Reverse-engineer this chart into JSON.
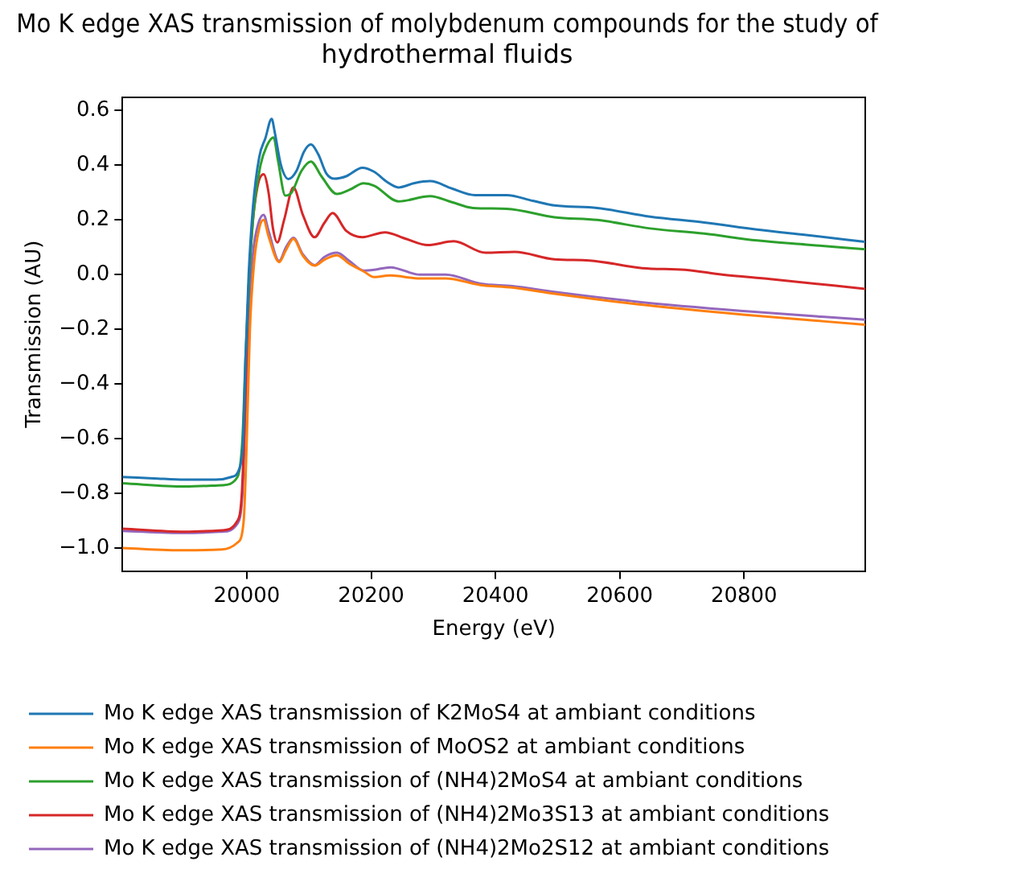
{
  "chart_data": {
    "type": "line",
    "title": "Mo K edge XAS transmission of molybdenum compounds for the study of hydrothermal fluids",
    "xlabel": "Energy (eV)",
    "ylabel": "Transmission (AU)",
    "xlim": [
      19800,
      20995
    ],
    "xticks": [
      20000,
      20200,
      20400,
      20600,
      20800
    ],
    "ylim": [
      -1.084,
      0.649
    ],
    "yticks": [
      {
        "value": -1.0,
        "label": "−1.0"
      },
      {
        "value": -0.8,
        "label": "−0.8"
      },
      {
        "value": -0.6,
        "label": "−0.6"
      },
      {
        "value": -0.4,
        "label": "−0.4"
      },
      {
        "value": -0.2,
        "label": "−0.2"
      },
      {
        "value": 0,
        "label": "0.0"
      },
      {
        "value": 0.2,
        "label": "0.2"
      },
      {
        "value": 0.4,
        "label": "0.4"
      },
      {
        "value": 0.6,
        "label": "0.6"
      }
    ],
    "grid": false,
    "legend": "bottom",
    "marker": "none",
    "line_style": "solid",
    "series": [
      {
        "name": "Mo K edge XAS transmission of K2MoS4 at ambiant conditions",
        "color": "#1f77b4",
        "x": [
          19800,
          19850,
          19900,
          19950,
          19975,
          19988,
          19994,
          19998,
          20003,
          20010,
          20020,
          20030,
          20040,
          20045,
          20055,
          20067,
          20080,
          20092,
          20103,
          20115,
          20128,
          20141,
          20160,
          20186,
          20205,
          20225,
          20244,
          20270,
          20295,
          20330,
          20367,
          20418,
          20460,
          20495,
          20564,
          20649,
          20736,
          20821,
          20900,
          20995
        ],
        "values": [
          -0.74,
          -0.745,
          -0.75,
          -0.75,
          -0.74,
          -0.71,
          -0.6,
          -0.3,
          0.0,
          0.25,
          0.43,
          0.5,
          0.57,
          0.52,
          0.4,
          0.35,
          0.38,
          0.45,
          0.476,
          0.44,
          0.37,
          0.351,
          0.36,
          0.391,
          0.376,
          0.34,
          0.319,
          0.335,
          0.342,
          0.315,
          0.291,
          0.291,
          0.27,
          0.253,
          0.244,
          0.212,
          0.191,
          0.165,
          0.145,
          0.12
        ]
      },
      {
        "name": "Mo K edge XAS transmission of MoOS2 at ambiant conditions",
        "color": "#ff7f0e",
        "x": [
          19800,
          19900,
          19960,
          19985,
          19995,
          20000,
          20005,
          20012,
          20020,
          20027,
          20035,
          20052,
          20063,
          20075,
          20090,
          20109,
          20125,
          20145,
          20165,
          20188,
          20205,
          20231,
          20278,
          20320,
          20376,
          20427,
          20495,
          20628,
          20799,
          20995
        ],
        "values": [
          -1.0,
          -1.008,
          -1.005,
          -0.98,
          -0.9,
          -0.6,
          -0.2,
          0.05,
          0.17,
          0.2,
          0.14,
          0.046,
          0.09,
          0.131,
          0.07,
          0.033,
          0.055,
          0.071,
          0.04,
          0.012,
          -0.009,
          -0.003,
          -0.014,
          -0.014,
          -0.038,
          -0.047,
          -0.07,
          -0.108,
          -0.146,
          -0.183
        ]
      },
      {
        "name": "Mo K edge XAS transmission of (NH4)2MoS4 at ambiant conditions",
        "color": "#2ca02c",
        "x": [
          19800,
          19900,
          19960,
          19985,
          19993,
          19998,
          20004,
          20012,
          20022,
          20032,
          20043,
          20050,
          20062,
          20072,
          20088,
          20103,
          20120,
          20145,
          20165,
          20188,
          20205,
          20244,
          20295,
          20330,
          20364,
          20418,
          20495,
          20564,
          20649,
          20736,
          20821,
          20900,
          20995
        ],
        "values": [
          -0.763,
          -0.775,
          -0.77,
          -0.74,
          -0.6,
          -0.3,
          0.0,
          0.25,
          0.4,
          0.47,
          0.502,
          0.42,
          0.289,
          0.3,
          0.38,
          0.414,
          0.36,
          0.295,
          0.31,
          0.334,
          0.325,
          0.268,
          0.287,
          0.265,
          0.244,
          0.241,
          0.21,
          0.2,
          0.169,
          0.15,
          0.125,
          0.11,
          0.093
        ]
      },
      {
        "name": "Mo K edge XAS transmission of (NH4)2Mo3S13 at ambiant conditions",
        "color": "#d62728",
        "x": [
          19800,
          19900,
          19960,
          19985,
          19992,
          19997,
          20002,
          20008,
          20017,
          20027,
          20035,
          20042,
          20049,
          20060,
          20075,
          20090,
          20109,
          20125,
          20138,
          20160,
          20186,
          20222,
          20256,
          20291,
          20333,
          20384,
          20431,
          20495,
          20551,
          20636,
          20705,
          20765,
          20842,
          20995
        ],
        "values": [
          -0.929,
          -0.94,
          -0.935,
          -0.9,
          -0.8,
          -0.5,
          -0.1,
          0.15,
          0.32,
          0.367,
          0.3,
          0.17,
          0.118,
          0.2,
          0.319,
          0.22,
          0.137,
          0.19,
          0.225,
          0.16,
          0.137,
          0.155,
          0.131,
          0.108,
          0.122,
          0.08,
          0.083,
          0.056,
          0.052,
          0.024,
          0.018,
          0.0,
          -0.016,
          -0.052
        ]
      },
      {
        "name": "Mo K edge XAS transmission of (NH4)2Mo2S12 at ambiant conditions",
        "color": "#9467bd",
        "x": [
          19800,
          19900,
          19960,
          19985,
          19993,
          19998,
          20003,
          20010,
          20019,
          20027,
          20035,
          20052,
          20063,
          20075,
          20090,
          20109,
          20125,
          20145,
          20165,
          20188,
          20205,
          20231,
          20278,
          20320,
          20376,
          20427,
          20495,
          20628,
          20799,
          20995
        ],
        "values": [
          -0.937,
          -0.945,
          -0.94,
          -0.91,
          -0.8,
          -0.5,
          -0.15,
          0.08,
          0.19,
          0.219,
          0.16,
          0.05,
          0.1,
          0.135,
          0.075,
          0.035,
          0.065,
          0.08,
          0.05,
          0.015,
          0.018,
          0.027,
          0.0,
          0.0,
          -0.033,
          -0.042,
          -0.063,
          -0.099,
          -0.133,
          -0.165
        ]
      }
    ]
  }
}
